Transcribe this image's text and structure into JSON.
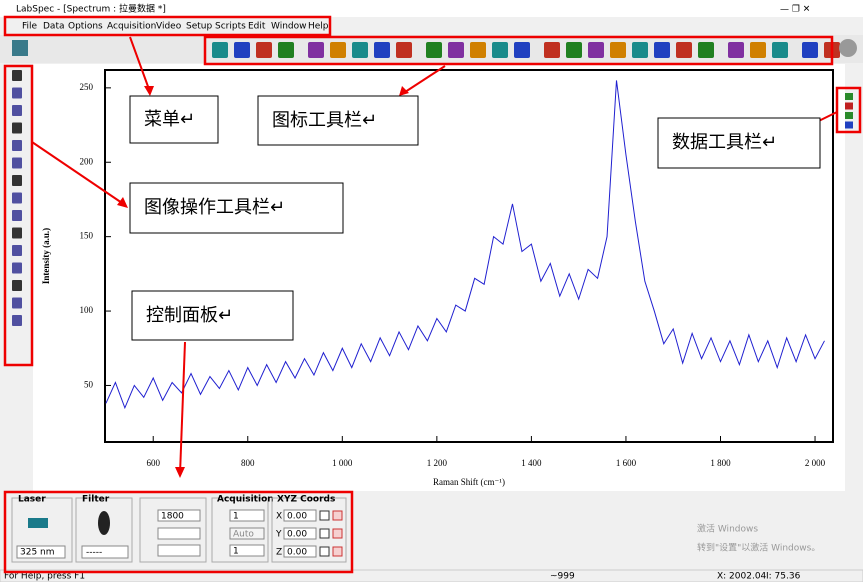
{
  "window": {
    "title": "LabSpec - [Spectrum : 拉曼数据 *]",
    "menu": [
      "File",
      "Data",
      "Options",
      "Acquisition",
      "Video",
      "Setup",
      "Scripts",
      "Edit",
      "Window",
      "Help"
    ]
  },
  "annotations": {
    "menu": "菜单↵",
    "icon_toolbar": "图标工具栏↵",
    "data_toolbar": "数据工具栏↵",
    "image_toolbar": "图像操作工具栏↵",
    "control_panel": "控制面板↵"
  },
  "chart_data": {
    "type": "line",
    "x_label": "Raman Shift (cm⁻¹)",
    "y_label": "Intensity (a.u.)",
    "color": "#2020d0",
    "x": [
      500,
      520,
      540,
      560,
      580,
      600,
      620,
      640,
      660,
      680,
      700,
      720,
      740,
      760,
      780,
      800,
      820,
      840,
      860,
      880,
      900,
      920,
      940,
      960,
      980,
      1000,
      1020,
      1040,
      1060,
      1080,
      1100,
      1120,
      1140,
      1160,
      1180,
      1200,
      1220,
      1240,
      1260,
      1280,
      1300,
      1320,
      1340,
      1360,
      1380,
      1400,
      1420,
      1440,
      1460,
      1480,
      1500,
      1520,
      1540,
      1560,
      1580,
      1600,
      1620,
      1640,
      1660,
      1680,
      1700,
      1720,
      1740,
      1760,
      1780,
      1800,
      1820,
      1840,
      1860,
      1880,
      1900,
      1920,
      1940,
      1960,
      1980,
      2000,
      2020
    ],
    "values": [
      38,
      52,
      35,
      50,
      42,
      55,
      40,
      52,
      45,
      58,
      44,
      56,
      48,
      60,
      47,
      62,
      50,
      64,
      52,
      66,
      55,
      68,
      57,
      72,
      60,
      75,
      62,
      78,
      66,
      82,
      70,
      86,
      74,
      90,
      80,
      95,
      86,
      104,
      100,
      122,
      118,
      150,
      145,
      172,
      140,
      145,
      120,
      132,
      110,
      125,
      108,
      128,
      122,
      150,
      255,
      205,
      160,
      120,
      100,
      78,
      88,
      65,
      85,
      68,
      82,
      66,
      80,
      64,
      84,
      66,
      80,
      62,
      82,
      66,
      84,
      68,
      80
    ],
    "xlim": [
      498,
      2038
    ],
    "ylim": [
      12,
      262
    ],
    "xticks": [
      600,
      800,
      {
        "value": 1000,
        "label": "1 000"
      },
      {
        "value": 1200,
        "label": "1 200"
      },
      {
        "value": 1400,
        "label": "1 400"
      },
      {
        "value": 1600,
        "label": "1 600"
      },
      {
        "value": 1800,
        "label": "1 800"
      },
      {
        "value": 2000,
        "label": "2 000"
      }
    ],
    "yticks": [
      50,
      100,
      150,
      200,
      250
    ]
  },
  "control_panel": {
    "laser_label": "Laser",
    "laser": "325 nm",
    "filter_label": "Filter",
    "filter": "-----",
    "grating": "1800",
    "acq_label": "Acquisition",
    "acq_time": "1",
    "acq_mode": "Auto",
    "acq_count": "1",
    "xyz_label": "XYZ Coords",
    "axes": [
      "X",
      "Y",
      "Z"
    ],
    "coords": [
      "0.00",
      "0.00",
      "0.00"
    ]
  },
  "status": {
    "help": "For Help, press F1",
    "value": "~999",
    "x": "X: 2002.04",
    "i": "I: 75.36"
  },
  "watermark": {
    "line1": "激活 Windows",
    "line2": "转到\"设置\"以激活 Windows。"
  }
}
